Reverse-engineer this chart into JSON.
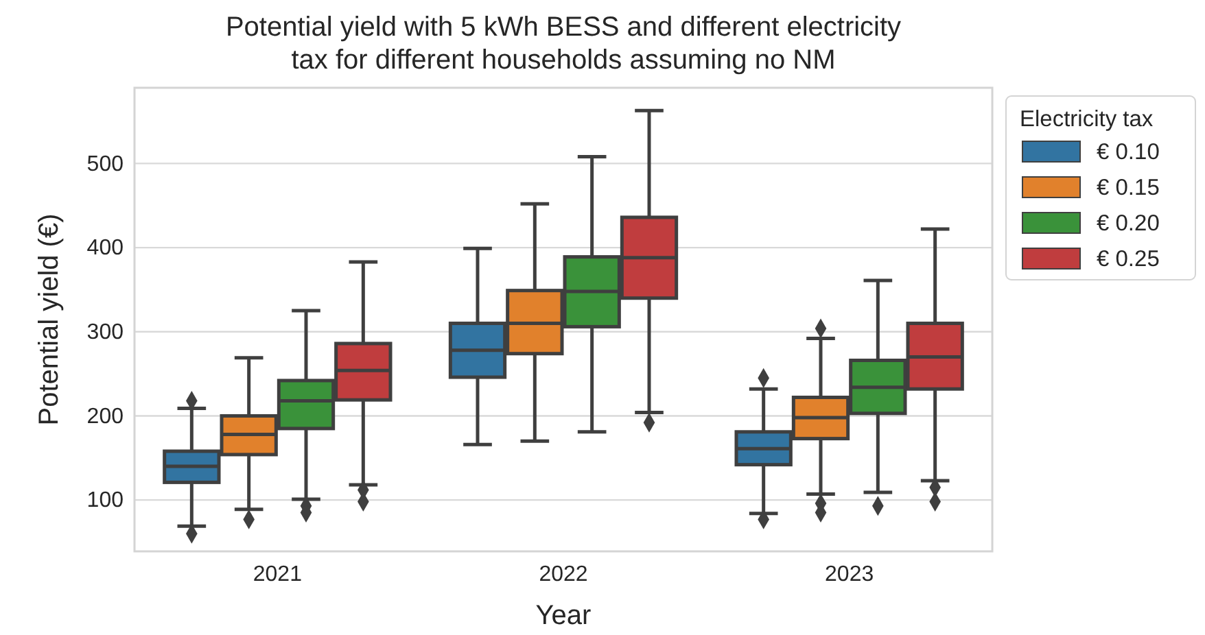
{
  "chart_data": {
    "type": "box",
    "title": "Potential yield with 5 kWh BESS and different electricity tax for different households assuming no NM",
    "xlabel": "Year",
    "ylabel": "Potential yield (€)",
    "legend_title": "Electricity tax",
    "legend": "right",
    "grid": "y",
    "marker": "diamond",
    "categories": [
      "2021",
      "2022",
      "2023"
    ],
    "ylim": [
      39,
      590
    ],
    "yticks": [
      100,
      200,
      300,
      400,
      500
    ],
    "series": [
      {
        "name": "€ 0.10",
        "color": "#3274a1",
        "boxes": [
          {
            "low": 69,
            "q1": 121,
            "median": 140,
            "q3": 158,
            "high": 209,
            "outliers": [
              218,
              60
            ]
          },
          {
            "low": 166,
            "q1": 246,
            "median": 278,
            "q3": 310,
            "high": 399
          },
          {
            "low": 84,
            "q1": 142,
            "median": 161,
            "q3": 181,
            "high": 232,
            "outliers": [
              245,
              77
            ]
          }
        ]
      },
      {
        "name": "€ 0.15",
        "color": "#e1812c",
        "boxes": [
          {
            "low": 89,
            "q1": 154,
            "median": 178,
            "q3": 200,
            "high": 269,
            "outliers": [
              77
            ]
          },
          {
            "low": 170,
            "q1": 274,
            "median": 310,
            "q3": 349,
            "high": 452
          },
          {
            "low": 107,
            "q1": 173,
            "median": 198,
            "q3": 222,
            "high": 292,
            "outliers": [
              304,
              96,
              85
            ]
          }
        ]
      },
      {
        "name": "€ 0.20",
        "color": "#3a923a",
        "boxes": [
          {
            "low": 101,
            "q1": 185,
            "median": 218,
            "q3": 242,
            "high": 325,
            "outliers": [
              93,
              85
            ]
          },
          {
            "low": 181,
            "q1": 306,
            "median": 348,
            "q3": 389,
            "high": 508
          },
          {
            "low": 109,
            "q1": 203,
            "median": 234,
            "q3": 266,
            "high": 361,
            "outliers": [
              93
            ]
          }
        ]
      },
      {
        "name": "€ 0.25",
        "color": "#c03d3e",
        "boxes": [
          {
            "low": 118,
            "q1": 219,
            "median": 254,
            "q3": 286,
            "high": 383,
            "outliers": [
              112,
              98
            ]
          },
          {
            "low": 204,
            "q1": 340,
            "median": 388,
            "q3": 436,
            "high": 563,
            "outliers": [
              192
            ]
          },
          {
            "low": 123,
            "q1": 232,
            "median": 270,
            "q3": 310,
            "high": 422,
            "outliers": [
              115,
              98
            ]
          }
        ]
      }
    ]
  }
}
